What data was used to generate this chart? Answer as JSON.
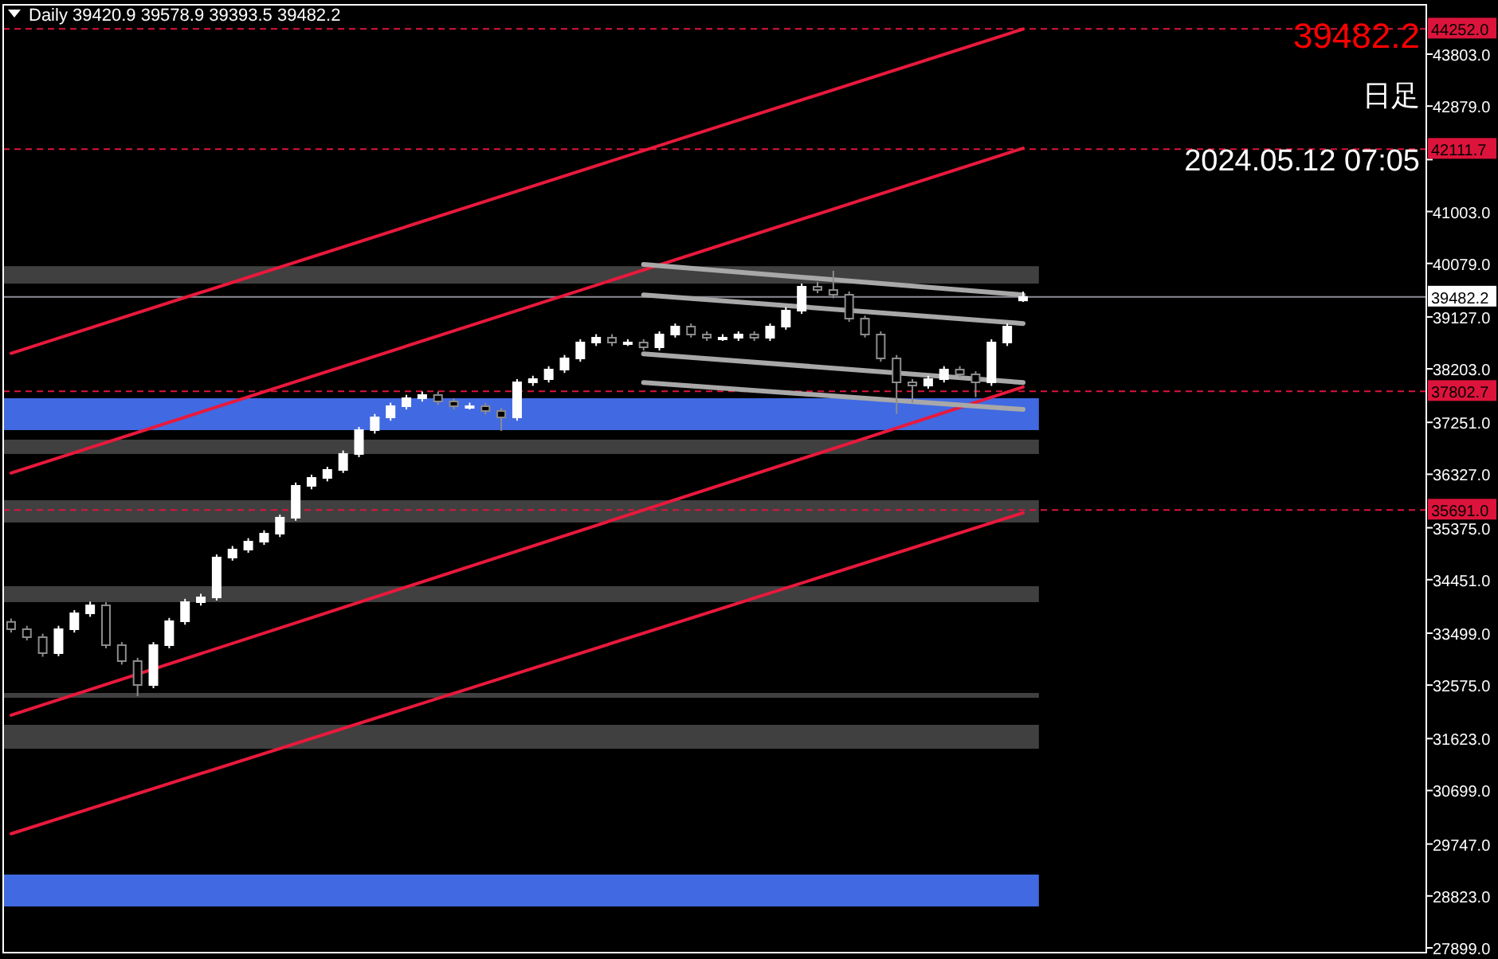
{
  "chart_data": {
    "type": "candlestick",
    "annotations": [
      "Daily  39420.9 39578.9 39393.5 39482.2",
      "39482.2",
      "日足",
      "2024.05.12 07:05"
    ],
    "categories": [
      null,
      null,
      null,
      null,
      null,
      null,
      null,
      null,
      null,
      null,
      null,
      null,
      null,
      null,
      null,
      null,
      null,
      null,
      null,
      null,
      null,
      null,
      null,
      null,
      null,
      null,
      null,
      null,
      null,
      null,
      null,
      null,
      null,
      null,
      null,
      null,
      null,
      null,
      null,
      null,
      null,
      null,
      null,
      null,
      null,
      null,
      null,
      null,
      null,
      null,
      null,
      null,
      null,
      null,
      null,
      null,
      null,
      null,
      null,
      null,
      null,
      null,
      null,
      null,
      null,
      null,
      null,
      null,
      null,
      null,
      null,
      null,
      null,
      null,
      null,
      null,
      null,
      null,
      null,
      null,
      null,
      null,
      null,
      null,
      null,
      null,
      null,
      null,
      null,
      null
    ],
    "ohlc": [
      [
        33700,
        33760,
        33510,
        33569
      ],
      [
        33569,
        33630,
        33370,
        33427
      ],
      [
        33427,
        33490,
        33080,
        33144
      ],
      [
        33144,
        33630,
        33090,
        33569
      ],
      [
        33569,
        33910,
        33510,
        33852
      ],
      [
        33852,
        34060,
        33790,
        33994
      ],
      [
        33994,
        34050,
        33230,
        33286
      ],
      [
        33286,
        33340,
        32940,
        33002
      ],
      [
        33002,
        33060,
        32378,
        32577
      ],
      [
        32577,
        33340,
        32520,
        33286
      ],
      [
        33286,
        33770,
        33230,
        33711
      ],
      [
        33711,
        34110,
        33650,
        34051
      ],
      [
        34051,
        34200,
        33990,
        34136
      ],
      [
        34136,
        34900,
        34080,
        34845
      ],
      [
        34845,
        35050,
        34790,
        34987
      ],
      [
        34987,
        35190,
        34930,
        35128
      ],
      [
        35128,
        35330,
        35070,
        35270
      ],
      [
        35270,
        35610,
        35210,
        35554
      ],
      [
        35554,
        36180,
        35500,
        36121
      ],
      [
        36121,
        36320,
        36060,
        36262
      ],
      [
        36262,
        36460,
        36200,
        36404
      ],
      [
        36404,
        36750,
        36350,
        36688
      ],
      [
        36688,
        37170,
        36630,
        37113
      ],
      [
        37113,
        37400,
        37050,
        37339
      ],
      [
        37339,
        37600,
        37280,
        37538
      ],
      [
        37538,
        37740,
        37480,
        37680
      ],
      [
        37680,
        37800,
        37620,
        37737
      ],
      [
        37737,
        37800,
        37560,
        37623
      ],
      [
        37623,
        37680,
        37480,
        37538
      ],
      [
        37538,
        37600,
        37480,
        37538
      ],
      [
        37538,
        37600,
        37390,
        37453
      ],
      [
        37453,
        37510,
        37100,
        37339
      ],
      [
        37339,
        38020,
        37280,
        37963
      ],
      [
        37963,
        38080,
        37900,
        38020
      ],
      [
        38020,
        38250,
        37960,
        38190
      ],
      [
        38190,
        38450,
        38130,
        38389
      ],
      [
        38389,
        38730,
        38330,
        38672
      ],
      [
        38672,
        38820,
        38610,
        38757
      ],
      [
        38757,
        38820,
        38610,
        38672
      ],
      [
        38672,
        38730,
        38610,
        38672
      ],
      [
        38672,
        38730,
        38530,
        38587
      ],
      [
        38587,
        38870,
        38530,
        38814
      ],
      [
        38814,
        39010,
        38760,
        38955
      ],
      [
        38955,
        39010,
        38760,
        38814
      ],
      [
        38814,
        38870,
        38700,
        38757
      ],
      [
        38757,
        38820,
        38700,
        38757
      ],
      [
        38757,
        38870,
        38700,
        38814
      ],
      [
        38814,
        38870,
        38700,
        38757
      ],
      [
        38757,
        39010,
        38700,
        38955
      ],
      [
        38955,
        39300,
        38900,
        39239
      ],
      [
        39239,
        39720,
        39180,
        39664
      ],
      [
        39664,
        39750,
        39550,
        39607
      ],
      [
        39607,
        39950,
        39460,
        39522
      ],
      [
        39522,
        39580,
        39040,
        39097
      ],
      [
        39097,
        39150,
        38760,
        38814
      ],
      [
        38814,
        38870,
        38330,
        38389
      ],
      [
        38389,
        38450,
        37400,
        37963
      ],
      [
        37963,
        38020,
        37600,
        37906
      ],
      [
        37906,
        38080,
        37850,
        38020
      ],
      [
        38020,
        38250,
        37960,
        38190
      ],
      [
        38190,
        38250,
        38050,
        38105
      ],
      [
        38105,
        38160,
        37700,
        37963
      ],
      [
        37963,
        38730,
        37900,
        38672
      ],
      [
        38672,
        39010,
        38610,
        38955
      ],
      [
        39420.9,
        39578.9,
        39393.5,
        39482.2
      ],
      null,
      null,
      null,
      null,
      null,
      null,
      null,
      null,
      null,
      null,
      null,
      null,
      null,
      null,
      null,
      null,
      null,
      null,
      null,
      null,
      null,
      null,
      null,
      null,
      null
    ],
    "series": [
      {
        "type": "line",
        "color": "#e8193c",
        "values": [
          38480,
          null,
          null,
          null,
          null,
          null,
          null,
          null,
          null,
          null,
          null,
          null,
          null,
          null,
          null,
          null,
          null,
          null,
          null,
          null,
          null,
          null,
          null,
          null,
          null,
          null,
          null,
          null,
          null,
          null,
          null,
          null,
          null,
          null,
          null,
          null,
          null,
          null,
          null,
          null,
          null,
          null,
          null,
          null,
          null,
          null,
          null,
          null,
          null,
          null,
          null,
          null,
          null,
          null,
          null,
          null,
          null,
          null,
          null,
          null,
          null,
          null,
          null,
          null,
          44250,
          null,
          null,
          null,
          null,
          null,
          null,
          null,
          null,
          null,
          null,
          null,
          null,
          null,
          null,
          null,
          null,
          null,
          null,
          null,
          null,
          null,
          null,
          null,
          null,
          null
        ]
      },
      {
        "type": "line",
        "color": "#e8193c",
        "values": [
          36350,
          null,
          null,
          null,
          null,
          null,
          null,
          null,
          null,
          null,
          null,
          null,
          null,
          null,
          null,
          null,
          null,
          null,
          null,
          null,
          null,
          null,
          null,
          null,
          null,
          null,
          null,
          null,
          null,
          null,
          null,
          null,
          null,
          null,
          null,
          null,
          null,
          null,
          null,
          null,
          null,
          null,
          null,
          null,
          null,
          null,
          null,
          null,
          null,
          null,
          null,
          null,
          null,
          null,
          null,
          null,
          null,
          null,
          null,
          null,
          null,
          null,
          null,
          null,
          42130,
          null,
          null,
          null,
          null,
          null,
          null,
          null,
          null,
          null,
          null,
          null,
          null,
          null,
          null,
          null,
          null,
          null,
          null,
          null,
          null,
          null,
          null,
          null,
          null,
          null
        ]
      },
      {
        "type": "line",
        "color": "#e8193c",
        "values": [
          32040,
          null,
          null,
          null,
          null,
          null,
          null,
          null,
          null,
          null,
          null,
          null,
          null,
          null,
          null,
          null,
          null,
          null,
          null,
          null,
          null,
          null,
          null,
          null,
          null,
          null,
          null,
          null,
          null,
          null,
          null,
          null,
          null,
          null,
          null,
          null,
          null,
          null,
          null,
          null,
          null,
          null,
          null,
          null,
          null,
          null,
          null,
          null,
          null,
          null,
          null,
          null,
          null,
          null,
          null,
          null,
          null,
          null,
          null,
          null,
          null,
          null,
          null,
          null,
          37880,
          null,
          null,
          null,
          null,
          null,
          null,
          null,
          null,
          null,
          null,
          null,
          null,
          null,
          null,
          null,
          null,
          null,
          null,
          null,
          null,
          null,
          null,
          null,
          null,
          null
        ]
      },
      {
        "type": "line",
        "color": "#e8193c",
        "values": [
          29930,
          null,
          null,
          null,
          null,
          null,
          null,
          null,
          null,
          null,
          null,
          null,
          null,
          null,
          null,
          null,
          null,
          null,
          null,
          null,
          null,
          null,
          null,
          null,
          null,
          null,
          null,
          null,
          null,
          null,
          null,
          null,
          null,
          null,
          null,
          null,
          null,
          null,
          null,
          null,
          null,
          null,
          null,
          null,
          null,
          null,
          null,
          null,
          null,
          null,
          null,
          null,
          null,
          null,
          null,
          null,
          null,
          null,
          null,
          null,
          null,
          null,
          null,
          null,
          35640,
          null,
          null,
          null,
          null,
          null,
          null,
          null,
          null,
          null,
          null,
          null,
          null,
          null,
          null,
          null,
          null,
          null,
          null,
          null,
          null,
          null,
          null,
          null,
          null,
          null
        ]
      },
      {
        "type": "line",
        "color": "#a8a8a8",
        "values": [
          null,
          null,
          null,
          null,
          null,
          null,
          null,
          null,
          null,
          null,
          null,
          null,
          null,
          null,
          null,
          null,
          null,
          null,
          null,
          null,
          null,
          null,
          null,
          null,
          null,
          null,
          null,
          null,
          null,
          null,
          null,
          null,
          null,
          null,
          null,
          null,
          null,
          null,
          null,
          null,
          40060,
          null,
          null,
          null,
          null,
          null,
          null,
          null,
          null,
          null,
          null,
          null,
          null,
          null,
          null,
          null,
          null,
          null,
          null,
          null,
          null,
          null,
          null,
          null,
          39520,
          null,
          null,
          null,
          null,
          null,
          null,
          null,
          null,
          null,
          null,
          null,
          null,
          null,
          null,
          null,
          null,
          null,
          null,
          null,
          null,
          null,
          null,
          null,
          null,
          null
        ]
      },
      {
        "type": "line",
        "color": "#a8a8a8",
        "values": [
          null,
          null,
          null,
          null,
          null,
          null,
          null,
          null,
          null,
          null,
          null,
          null,
          null,
          null,
          null,
          null,
          null,
          null,
          null,
          null,
          null,
          null,
          null,
          null,
          null,
          null,
          null,
          null,
          null,
          null,
          null,
          null,
          null,
          null,
          null,
          null,
          null,
          null,
          null,
          null,
          39520,
          null,
          null,
          null,
          null,
          null,
          null,
          null,
          null,
          null,
          null,
          null,
          null,
          null,
          null,
          null,
          null,
          null,
          null,
          null,
          null,
          null,
          null,
          null,
          39010,
          null,
          null,
          null,
          null,
          null,
          null,
          null,
          null,
          null,
          null,
          null,
          null,
          null,
          null,
          null,
          null,
          null,
          null,
          null,
          null,
          null,
          null,
          null,
          null,
          null
        ]
      },
      {
        "type": "line",
        "color": "#a8a8a8",
        "values": [
          null,
          null,
          null,
          null,
          null,
          null,
          null,
          null,
          null,
          null,
          null,
          null,
          null,
          null,
          null,
          null,
          null,
          null,
          null,
          null,
          null,
          null,
          null,
          null,
          null,
          null,
          null,
          null,
          null,
          null,
          null,
          null,
          null,
          null,
          null,
          null,
          null,
          null,
          null,
          null,
          38470,
          null,
          null,
          null,
          null,
          null,
          null,
          null,
          null,
          null,
          null,
          null,
          null,
          null,
          null,
          null,
          null,
          null,
          null,
          null,
          null,
          null,
          null,
          null,
          37960,
          null,
          null,
          null,
          null,
          null,
          null,
          null,
          null,
          null,
          null,
          null,
          null,
          null,
          null,
          null,
          null,
          null,
          null,
          null,
          null,
          null,
          null,
          null,
          null,
          null
        ]
      },
      {
        "type": "line",
        "color": "#a8a8a8",
        "values": [
          null,
          null,
          null,
          null,
          null,
          null,
          null,
          null,
          null,
          null,
          null,
          null,
          null,
          null,
          null,
          null,
          null,
          null,
          null,
          null,
          null,
          null,
          null,
          null,
          null,
          null,
          null,
          null,
          null,
          null,
          null,
          null,
          null,
          null,
          null,
          null,
          null,
          null,
          null,
          null,
          37960,
          null,
          null,
          null,
          null,
          null,
          null,
          null,
          null,
          null,
          null,
          null,
          null,
          null,
          null,
          null,
          null,
          null,
          null,
          null,
          null,
          null,
          null,
          null,
          37480,
          null,
          null,
          null,
          null,
          null,
          null,
          null,
          null,
          null,
          null,
          null,
          null,
          null,
          null,
          null,
          null,
          null,
          null,
          null,
          null,
          null,
          null,
          null,
          null,
          null
        ]
      }
    ],
    "ylim": [
      27814,
      44682
    ],
    "yticks": [
      {
        "value": 43803,
        "label": "43803.0"
      },
      {
        "value": 42879,
        "label": "42879.0"
      },
      {
        "value": 41927,
        "label": null
      },
      {
        "value": 41003,
        "label": "41003.0"
      },
      {
        "value": 40079,
        "label": "40079.0"
      },
      {
        "value": 39127,
        "label": "39127.0"
      },
      {
        "value": 38203,
        "label": "38203.0"
      },
      {
        "value": 37251,
        "label": "37251.0"
      },
      {
        "value": 36327,
        "label": "36327.0"
      },
      {
        "value": 35375,
        "label": "35375.0"
      },
      {
        "value": 34451,
        "label": "34451.0"
      },
      {
        "value": 33499,
        "label": "33499.0"
      },
      {
        "value": 32575,
        "label": "32575.0"
      },
      {
        "value": 31623,
        "label": "31623.0"
      },
      {
        "value": 30699,
        "label": "30699.0"
      },
      {
        "value": 29747,
        "label": "29747.0"
      },
      {
        "value": 28823,
        "label": "28823.0"
      },
      {
        "value": 27899,
        "label": "27899.0"
      }
    ],
    "tick_labels": "y",
    "ref_lines": [
      {
        "axis": "y",
        "value": 44252.0,
        "label": "44252.0",
        "color": "#dc143c",
        "line_style": "dashed"
      },
      {
        "axis": "y",
        "value": 42111.7,
        "label": "42111.7",
        "color": "#dc143c",
        "line_style": "dashed"
      },
      {
        "axis": "y",
        "value": 37802.7,
        "label": "37802.7",
        "color": "#dc143c",
        "line_style": "dashed"
      },
      {
        "axis": "y",
        "value": 35691.0,
        "label": "35691.0",
        "color": "#dc143c",
        "line_style": "dashed"
      },
      {
        "axis": "y",
        "value": 39482.2,
        "label": "39482.2",
        "color": "#8c8c96",
        "line_style": "solid"
      }
    ],
    "bands": [
      {
        "axis": "y",
        "from": 39720,
        "to": 40030,
        "color": "#404040"
      },
      {
        "axis": "y",
        "from": 37113,
        "to": 37680,
        "color": "#4169e1"
      },
      {
        "axis": "y",
        "from": 36688,
        "to": 36943,
        "color": "#404040"
      },
      {
        "axis": "y",
        "from": 35469,
        "to": 35865,
        "color": "#404040"
      },
      {
        "axis": "y",
        "from": 34051,
        "to": 34335,
        "color": "#404040"
      },
      {
        "axis": "y",
        "from": 32350,
        "to": 32435,
        "color": "#404040"
      },
      {
        "axis": "y",
        "from": 31443,
        "to": 31868,
        "color": "#404040"
      },
      {
        "axis": "y",
        "from": 28636,
        "to": 29203,
        "color": "#4169e1"
      }
    ]
  }
}
